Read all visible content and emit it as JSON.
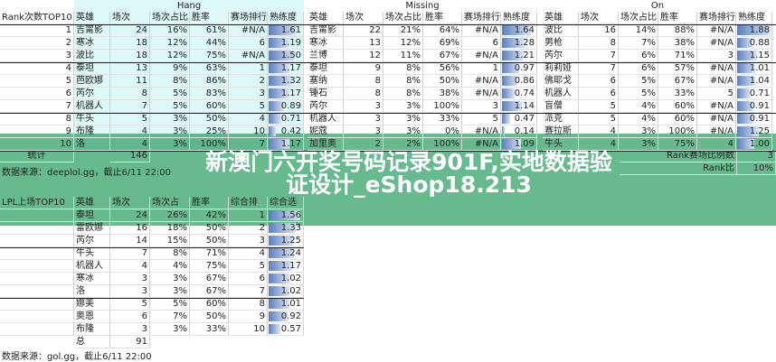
{
  "top": {
    "rank_header": "Rank次数TOP10",
    "columns": [
      "英雄",
      "场次",
      "场次占比",
      "胜率",
      "赛场排行",
      "熟练度"
    ],
    "tables": [
      {
        "title": "Hang",
        "rows": [
          [
            "吉甯影",
            "24",
            "16%",
            "61%",
            "#N/A",
            "1.61"
          ],
          [
            "寒冰",
            "18",
            "12%",
            "44%",
            "6",
            "1.19"
          ],
          [
            "波比",
            "18",
            "12%",
            "75%",
            "#N/A",
            "1.50"
          ],
          [
            "泰坦",
            "13",
            "9%",
            "63%",
            "1",
            "1.17"
          ],
          [
            "芭欧娜",
            "11",
            "8%",
            "86%",
            "2",
            "1.32"
          ],
          [
            "芮尔",
            "8",
            "5%",
            "83%",
            "3",
            "1.17"
          ],
          [
            "机器人",
            "7",
            "5%",
            "60%",
            "5",
            "0.89"
          ],
          [
            "牛头",
            "5",
            "3%",
            "50%",
            "4",
            "0.71"
          ],
          [
            "布隆",
            "4",
            "3%",
            "25%",
            "10",
            "0.42"
          ],
          [
            "洛",
            "4",
            "3%",
            "100%",
            "7",
            "1.17"
          ]
        ]
      },
      {
        "title": "Missing",
        "rows": [
          [
            "吉甯影",
            "22",
            "21%",
            "64%",
            "#N/A",
            "1.64"
          ],
          [
            "寒冰",
            "13",
            "12%",
            "69%",
            "6",
            "1.28"
          ],
          [
            "兰博",
            "12",
            "11%",
            "67%",
            "#N/A",
            "1.21"
          ],
          [
            "泰坦",
            "9",
            "8%",
            "56%",
            "1",
            "0.97"
          ],
          [
            "塞纳",
            "8",
            "8%",
            "50%",
            "#N/A",
            "0.86"
          ],
          [
            "锤石",
            "8",
            "8%",
            "38%",
            "#N/A",
            "0.74"
          ],
          [
            "芮尔",
            "3",
            "3%",
            "100%",
            "3",
            "1.14"
          ],
          [
            "机器人",
            "3",
            "3%",
            "33%",
            "5",
            "0.47"
          ],
          [
            "妮蔻",
            "3",
            "3%",
            "0%",
            "#N/A",
            "0.14"
          ],
          [
            "加里奥",
            "2",
            "2%",
            "100%",
            "#N/A",
            "1.09"
          ]
        ]
      },
      {
        "title": "On",
        "rows": [
          [
            "波比",
            "16",
            "14%",
            "88%",
            "#N/A",
            "1.88"
          ],
          [
            "男枪",
            "8",
            "7%",
            "38%",
            "#N/A",
            "0.88"
          ],
          [
            "芮尔",
            "7",
            "6%",
            "71%",
            "3",
            "1.15"
          ],
          [
            "莉莉娅",
            "7",
            "6%",
            "57%",
            "#N/A",
            "1.01"
          ],
          [
            "佛耶戈",
            "6",
            "5%",
            "67%",
            "#N/A",
            "1.04"
          ],
          [
            "机器人",
            "6",
            "5%",
            "33%",
            "5",
            "0.71"
          ],
          [
            "盲僧",
            "5",
            "4%",
            "60%",
            "#N/A",
            "0.91"
          ],
          [
            "派克",
            "5",
            "4%",
            "60%",
            "#N/A",
            "0.91"
          ],
          [
            "赛拉斯",
            "4",
            "3%",
            "100%",
            "#N/A",
            "1.25"
          ],
          [
            "牛头",
            "4",
            "3%",
            "75%",
            "4",
            "1.00"
          ]
        ]
      }
    ],
    "stats_label": "统计",
    "stats_value": "146",
    "right_stats": [
      {
        "label": "Rank赛场比例数",
        "value": "3"
      },
      {
        "label": "Rank比",
        "value": "10%"
      }
    ],
    "source": "数据来源：deeplol.gg，截止6/11 22:00"
  },
  "lpl": {
    "header": "LPL上场TOP10",
    "columns": [
      "英雄",
      "场次",
      "场次占",
      "胜率",
      "综合排",
      "综合选"
    ],
    "rows": [
      [
        "泰坦",
        "24",
        "26%",
        "42%",
        "1",
        "1.56"
      ],
      [
        "雷欧娜",
        "16",
        "18%",
        "50%",
        "2",
        "1.33"
      ],
      [
        "芮尔",
        "14",
        "15%",
        "50%",
        "3",
        "1.25"
      ],
      [
        "牛头",
        "7",
        "8%",
        "71%",
        "4",
        "1.24"
      ],
      [
        "机器人",
        "4",
        "4%",
        "75%",
        "5",
        "1.17"
      ],
      [
        "寒冰",
        "3",
        "3%",
        "67%",
        "6",
        "1.02"
      ],
      [
        "洛",
        "3",
        "3%",
        "67%",
        "7",
        "1.02"
      ],
      [
        "娜美",
        "5",
        "5%",
        "60%",
        "8",
        "1.01"
      ],
      [
        "奥恩",
        "6",
        "7%",
        "50%",
        "9",
        "0.92"
      ],
      [
        "布隆",
        "3",
        "3%",
        "33%",
        "10",
        "0.57"
      ]
    ],
    "total_label": "总",
    "total_value": "91",
    "source": "数据来源：gol.gg，截止6/11 22:00"
  },
  "banner": {
    "text": "新澳门六开奖号码记录901F,实地数据验证设计_eShop18.213"
  },
  "colors": {
    "hang_bg": "#dcf9f8",
    "bar": "#5b7fc0",
    "banner": "#3ca56e"
  }
}
